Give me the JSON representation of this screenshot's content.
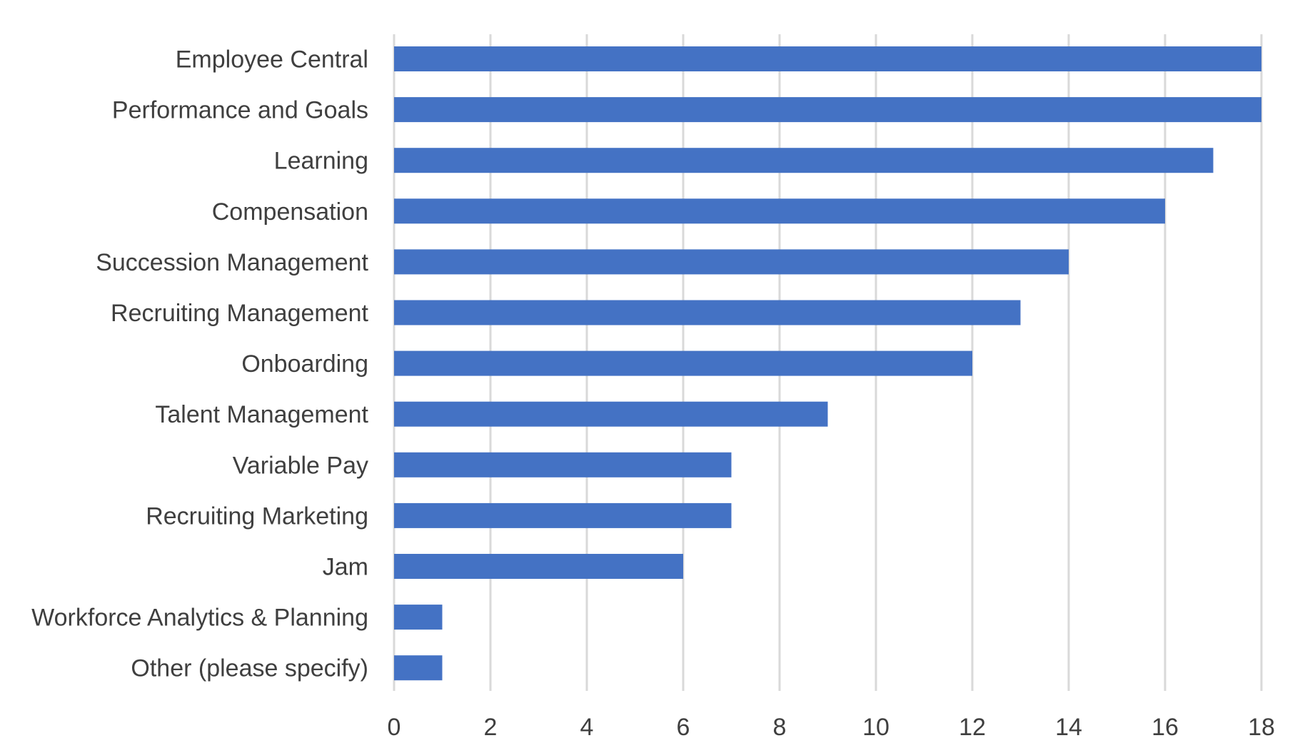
{
  "chart_data": {
    "type": "bar",
    "orientation": "horizontal",
    "title": "",
    "xlabel": "",
    "ylabel": "",
    "categories": [
      "Employee Central",
      "Performance and Goals",
      "Learning",
      "Compensation",
      "Succession Management",
      "Recruiting Management",
      "Onboarding",
      "Talent Management",
      "Variable Pay",
      "Recruiting Marketing",
      "Jam",
      "Workforce Analytics & Planning",
      "Other (please specify)"
    ],
    "values": [
      18,
      18,
      17,
      16,
      14,
      13,
      12,
      9,
      7,
      7,
      6,
      1,
      1
    ],
    "xlim": [
      0,
      18
    ],
    "xticks": [
      "0",
      "2",
      "4",
      "6",
      "8",
      "10",
      "12",
      "14",
      "16",
      "18"
    ],
    "grid": true,
    "legend": "none",
    "bar_color": "#4472C4",
    "grid_color": "#D9D9D9",
    "text_color": "#3F3F3F"
  }
}
